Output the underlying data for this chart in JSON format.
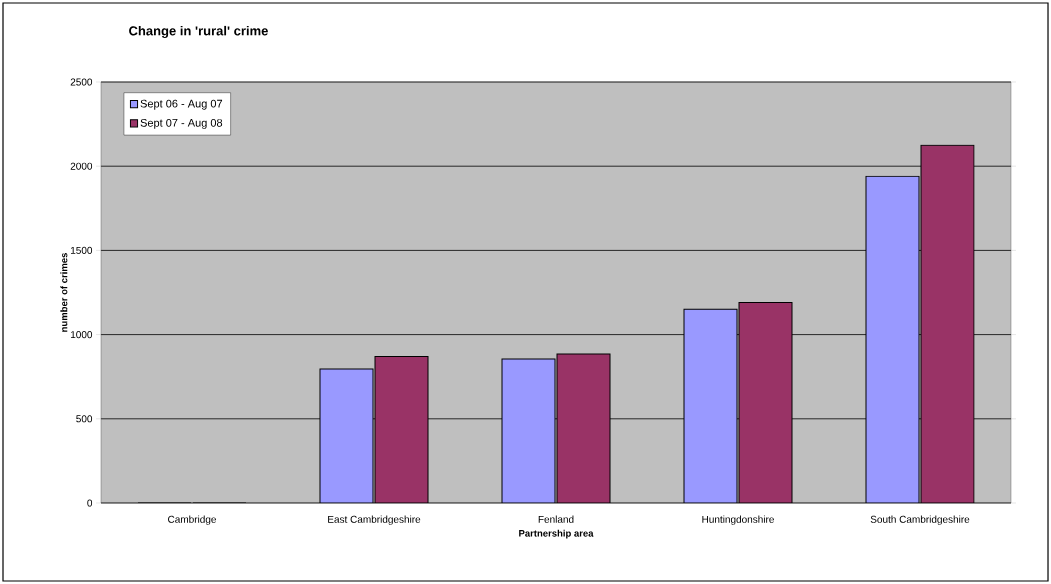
{
  "chart_data": {
    "type": "bar",
    "title": "Change in 'rural' crime",
    "xlabel": "Partnership area",
    "ylabel": "number of crimes",
    "categories": [
      "Cambridge",
      "East Cambridgeshire",
      "Fenland",
      "Huntingdonshire",
      "South Cambridgeshire"
    ],
    "series": [
      {
        "name": "Sept 06 - Aug 07",
        "color": "#9999ff",
        "values": [
          0,
          795,
          855,
          1150,
          1940
        ]
      },
      {
        "name": "Sept 07 - Aug 08",
        "color": "#993366",
        "values": [
          0,
          870,
          885,
          1190,
          2125
        ]
      }
    ],
    "ylim": [
      0,
      2500
    ],
    "yticks": [
      0,
      500,
      1000,
      1500,
      2000,
      2500
    ],
    "grid": "y",
    "legend": "top left"
  }
}
